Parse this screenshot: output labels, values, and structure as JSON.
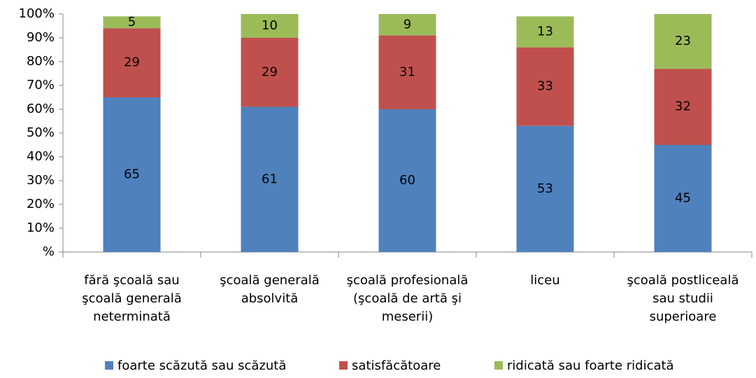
{
  "chart_data": {
    "type": "stacked-bar",
    "categories": [
      "fără şcoală sau\nşcoală generală\nneterminată",
      "şcoală generală\nabsolvită",
      "şcoală profesională\n(şcoală de artă şi\nmeserii)",
      "liceu",
      "şcoală postliceală\nsau studii\nsuperioare"
    ],
    "series": [
      {
        "name": "foarte scăzută sau scăzută",
        "color": "#4f81bd",
        "values": [
          65,
          61,
          60,
          53,
          45
        ]
      },
      {
        "name": "satisfăcătoare",
        "color": "#c0504d",
        "values": [
          29,
          29,
          31,
          33,
          32
        ]
      },
      {
        "name": "ridicată sau foarte ridicată",
        "color": "#9bbb59",
        "values": [
          5,
          10,
          9,
          13,
          23
        ]
      }
    ],
    "ylim": [
      0,
      100
    ],
    "yticks": [
      {
        "value": 0,
        "label": "%"
      },
      {
        "value": 10,
        "label": "10%"
      },
      {
        "value": 20,
        "label": "20%"
      },
      {
        "value": 30,
        "label": "30%"
      },
      {
        "value": 40,
        "label": "40%"
      },
      {
        "value": 50,
        "label": "50%"
      },
      {
        "value": 60,
        "label": "60%"
      },
      {
        "value": 70,
        "label": "70%"
      },
      {
        "value": 80,
        "label": "80%"
      },
      {
        "value": 90,
        "label": "90%"
      },
      {
        "value": 100,
        "label": "100%"
      }
    ],
    "legend": "bottom"
  }
}
